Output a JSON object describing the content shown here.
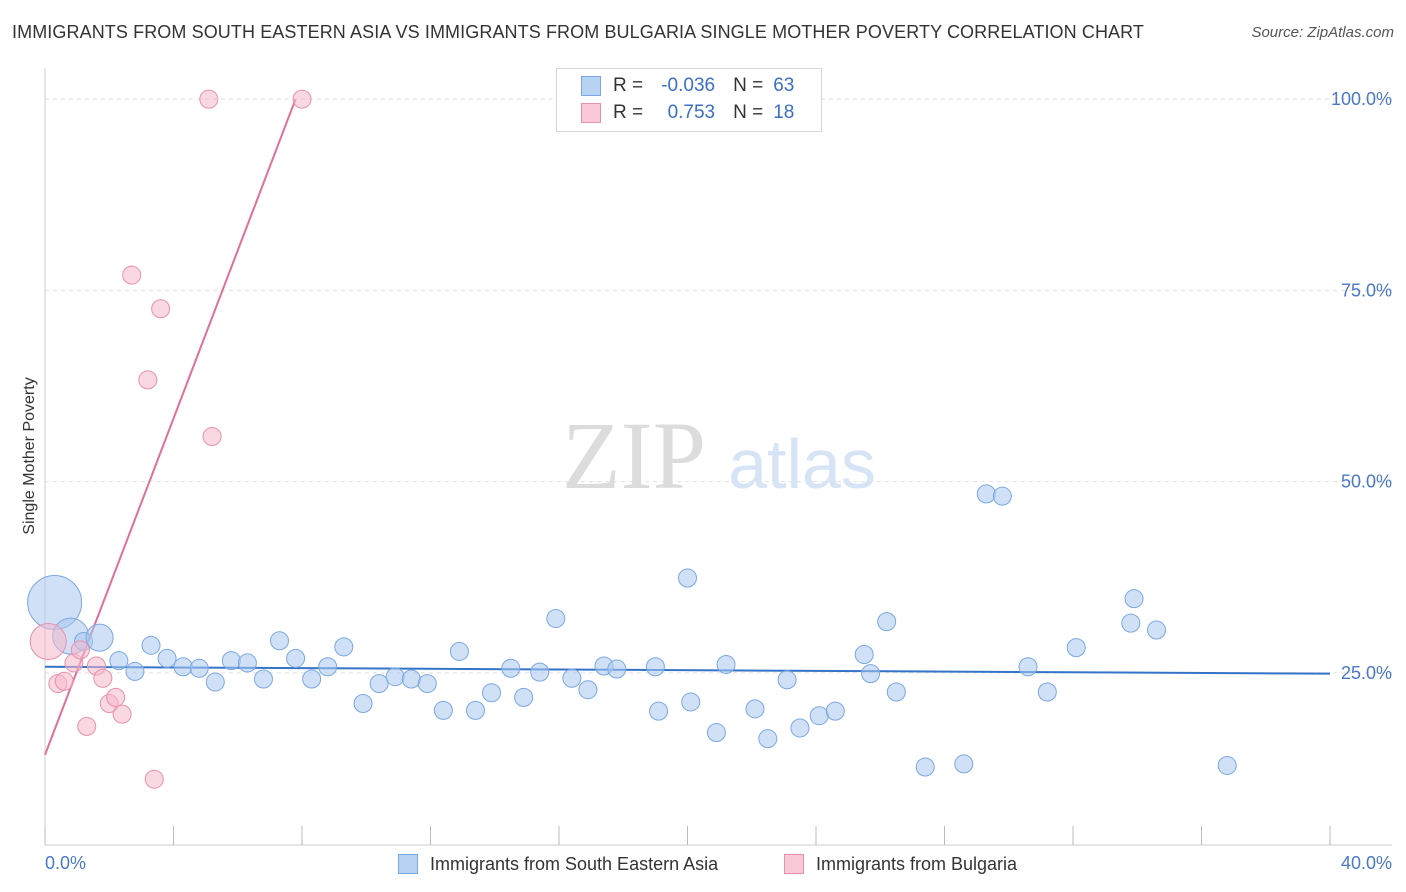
{
  "title": "IMMIGRANTS FROM SOUTH EASTERN ASIA VS IMMIGRANTS FROM BULGARIA SINGLE MOTHER POVERTY CORRELATION CHART",
  "source": "Source: ZipAtlas.com",
  "watermark": {
    "zip": "ZIP",
    "atlas": "atlas"
  },
  "legend_top": {
    "series1": {
      "r_label": "R =",
      "r_value": "-0.036",
      "n_label": "N =",
      "n_value": "63"
    },
    "series2": {
      "r_label": "R =",
      "r_value": "0.753",
      "n_label": "N =",
      "n_value": "18"
    }
  },
  "colors": {
    "blue_fill": "#a9c8f0",
    "blue_stroke": "#7aa8e0",
    "blue_line": "#3474c8",
    "pink_fill": "#f5b8cb",
    "pink_stroke": "#e890ac",
    "pink_line": "#e0709a",
    "tick_text": "#4a78c8",
    "grid": "#e0e0e0"
  },
  "chart_data": {
    "type": "scatter",
    "title": "IMMIGRANTS FROM SOUTH EASTERN ASIA VS IMMIGRANTS FROM BULGARIA SINGLE MOTHER POVERTY CORRELATION CHART",
    "xlabel": "",
    "ylabel": "Single Mother Poverty",
    "xlim": [
      0,
      40
    ],
    "ylim": [
      2.5,
      102.5
    ],
    "x_tick_labels": [
      {
        "value": 0,
        "label": "0.0%"
      },
      {
        "value": 40,
        "label": "40.0%"
      }
    ],
    "y_tick_labels": [
      {
        "value": 25,
        "label": "25.0%"
      },
      {
        "value": 50,
        "label": "50.0%"
      },
      {
        "value": 75,
        "label": "75.0%"
      },
      {
        "value": 100,
        "label": "100.0%"
      }
    ],
    "series": [
      {
        "name": "Immigrants from South Eastern Asia",
        "color": "blue",
        "R": -0.036,
        "N": 63,
        "trend": {
          "x": [
            0,
            40
          ],
          "y": [
            25.8,
            24.9
          ]
        },
        "points": [
          {
            "x": 0.3,
            "y": 34.2,
            "s": 3
          },
          {
            "x": 0.8,
            "y": 29.8,
            "s": 2
          },
          {
            "x": 1.2,
            "y": 29.1
          },
          {
            "x": 1.7,
            "y": 29.6,
            "s": 1.5
          },
          {
            "x": 2.3,
            "y": 26.6
          },
          {
            "x": 2.8,
            "y": 25.2
          },
          {
            "x": 3.3,
            "y": 28.6
          },
          {
            "x": 3.8,
            "y": 26.9
          },
          {
            "x": 4.3,
            "y": 25.8
          },
          {
            "x": 4.8,
            "y": 25.6
          },
          {
            "x": 5.3,
            "y": 23.8
          },
          {
            "x": 5.8,
            "y": 26.6
          },
          {
            "x": 6.3,
            "y": 26.3
          },
          {
            "x": 6.8,
            "y": 24.2
          },
          {
            "x": 7.3,
            "y": 29.2
          },
          {
            "x": 7.8,
            "y": 26.9
          },
          {
            "x": 8.3,
            "y": 24.2
          },
          {
            "x": 8.8,
            "y": 25.8
          },
          {
            "x": 9.3,
            "y": 28.4
          },
          {
            "x": 9.9,
            "y": 21.0
          },
          {
            "x": 10.4,
            "y": 23.6
          },
          {
            "x": 10.9,
            "y": 24.5
          },
          {
            "x": 11.4,
            "y": 24.2
          },
          {
            "x": 11.9,
            "y": 23.6
          },
          {
            "x": 12.4,
            "y": 20.1
          },
          {
            "x": 12.9,
            "y": 27.8
          },
          {
            "x": 13.4,
            "y": 20.1
          },
          {
            "x": 13.9,
            "y": 22.4
          },
          {
            "x": 14.5,
            "y": 25.6
          },
          {
            "x": 14.9,
            "y": 21.8
          },
          {
            "x": 15.4,
            "y": 25.1
          },
          {
            "x": 15.9,
            "y": 32.1
          },
          {
            "x": 16.4,
            "y": 24.3
          },
          {
            "x": 16.9,
            "y": 22.8
          },
          {
            "x": 17.4,
            "y": 25.9
          },
          {
            "x": 17.8,
            "y": 25.5
          },
          {
            "x": 19.0,
            "y": 25.8
          },
          {
            "x": 19.1,
            "y": 20.0
          },
          {
            "x": 20.0,
            "y": 37.4
          },
          {
            "x": 20.1,
            "y": 21.2
          },
          {
            "x": 20.9,
            "y": 17.2
          },
          {
            "x": 21.2,
            "y": 26.1
          },
          {
            "x": 22.1,
            "y": 20.3
          },
          {
            "x": 22.5,
            "y": 16.4
          },
          {
            "x": 23.1,
            "y": 24.1
          },
          {
            "x": 23.5,
            "y": 17.8
          },
          {
            "x": 24.1,
            "y": 19.4
          },
          {
            "x": 24.6,
            "y": 20.0
          },
          {
            "x": 25.5,
            "y": 27.4
          },
          {
            "x": 25.7,
            "y": 24.9
          },
          {
            "x": 26.2,
            "y": 31.7
          },
          {
            "x": 26.5,
            "y": 22.5
          },
          {
            "x": 27.4,
            "y": 12.7
          },
          {
            "x": 28.6,
            "y": 13.1
          },
          {
            "x": 29.3,
            "y": 48.4
          },
          {
            "x": 29.8,
            "y": 48.1
          },
          {
            "x": 30.6,
            "y": 25.8
          },
          {
            "x": 31.2,
            "y": 22.5
          },
          {
            "x": 32.1,
            "y": 28.3
          },
          {
            "x": 33.8,
            "y": 31.5
          },
          {
            "x": 33.9,
            "y": 34.7
          },
          {
            "x": 34.6,
            "y": 30.6
          },
          {
            "x": 36.8,
            "y": 12.9
          }
        ]
      },
      {
        "name": "Immigrants from Bulgaria",
        "color": "pink",
        "R": 0.753,
        "N": 18,
        "trend": {
          "x": [
            0,
            7.8
          ],
          "y": [
            14.3,
            100.0
          ]
        },
        "points": [
          {
            "x": 0.1,
            "y": 29.1,
            "s": 2
          },
          {
            "x": 0.4,
            "y": 23.6
          },
          {
            "x": 0.6,
            "y": 23.9
          },
          {
            "x": 0.9,
            "y": 26.3
          },
          {
            "x": 1.1,
            "y": 28.0
          },
          {
            "x": 1.3,
            "y": 18.0
          },
          {
            "x": 1.6,
            "y": 25.9
          },
          {
            "x": 1.8,
            "y": 24.3
          },
          {
            "x": 2.0,
            "y": 21.0
          },
          {
            "x": 2.2,
            "y": 21.8
          },
          {
            "x": 2.4,
            "y": 19.6
          },
          {
            "x": 2.7,
            "y": 77.0
          },
          {
            "x": 3.2,
            "y": 63.3
          },
          {
            "x": 3.4,
            "y": 11.1
          },
          {
            "x": 3.6,
            "y": 72.6
          },
          {
            "x": 5.2,
            "y": 55.9
          },
          {
            "x": 5.1,
            "y": 100.0
          },
          {
            "x": 8.0,
            "y": 100.0
          }
        ]
      }
    ]
  },
  "bottom_legend": {
    "series1": "Immigrants from South Eastern Asia",
    "series2": "Immigrants from Bulgaria"
  }
}
